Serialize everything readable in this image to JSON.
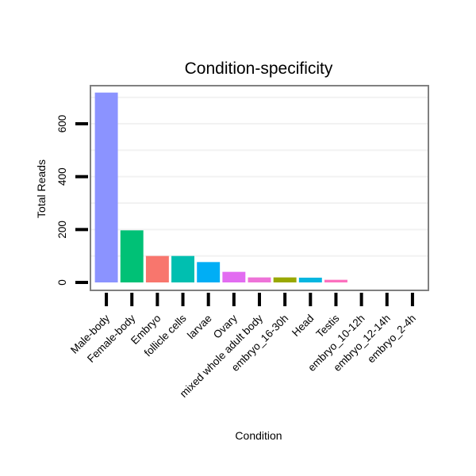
{
  "chart_data": {
    "type": "bar",
    "title": "Condition-specificity",
    "xlabel": "Condition",
    "ylabel": "Total Reads",
    "ylim": [
      0,
      720
    ],
    "yticks": [
      0,
      200,
      400,
      600
    ],
    "grid": true,
    "categories": [
      "Male-body",
      "Female-body",
      "Embryo",
      "follicle cells",
      "larvae",
      "Ovary",
      "mixed whole adult body",
      "embryo_16-30h",
      "Head",
      "Testis",
      "embryo_10-12h",
      "embryo_12-14h",
      "embryo_2-4h"
    ],
    "values": [
      718,
      197,
      100,
      100,
      77,
      40,
      19,
      19,
      18,
      10,
      0,
      0,
      0
    ],
    "colors": [
      "#8B93FF",
      "#00C176",
      "#F8766D",
      "#00BFB0",
      "#00AEF5",
      "#E26CF1",
      "#EE73D8",
      "#99A800",
      "#05B6E0",
      "#FC70BE",
      "#FFFFFF",
      "#FFFFFF",
      "#FFFFFF"
    ]
  }
}
